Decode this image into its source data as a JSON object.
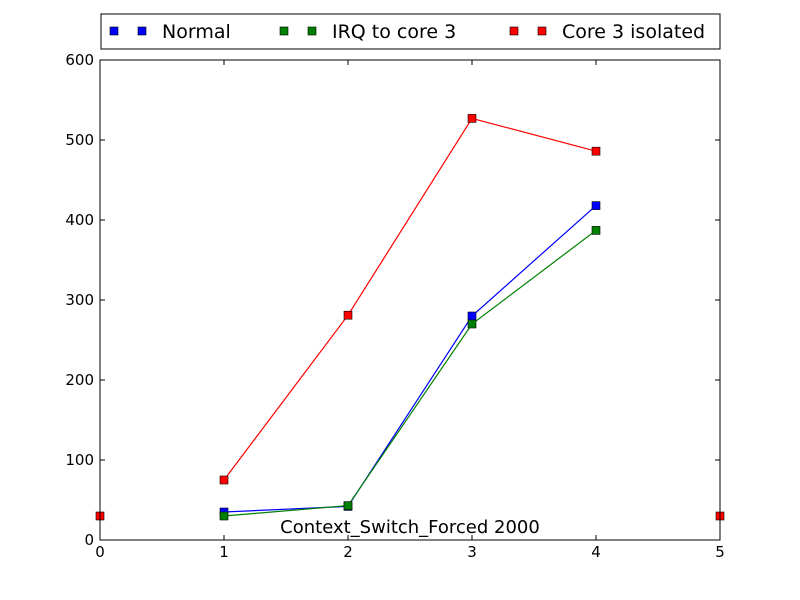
{
  "chart_data": {
    "type": "line",
    "x": [
      0,
      1,
      2,
      3,
      4,
      5
    ],
    "series": [
      {
        "name": "Normal",
        "color": "#0000ff",
        "values": [
          null,
          35,
          42,
          280,
          418,
          null
        ],
        "markers_only": []
      },
      {
        "name": "IRQ to core 3",
        "color": "#008000",
        "values": [
          null,
          30,
          43,
          270,
          387,
          null
        ],
        "markers_only": []
      },
      {
        "name": "Core 3 isolated",
        "color": "#ff0000",
        "values": [
          null,
          75,
          281,
          527,
          486,
          null
        ],
        "markers_only": [
          [
            0,
            30
          ],
          [
            5,
            30
          ]
        ]
      }
    ],
    "annotation": "Context_Switch_Forced 2000",
    "xlim": [
      0,
      5
    ],
    "ylim": [
      0,
      600
    ],
    "xticks": [
      "0",
      "1",
      "2",
      "3",
      "4",
      "5"
    ],
    "yticks": [
      "0",
      "100",
      "200",
      "300",
      "400",
      "500",
      "600"
    ],
    "grid": false,
    "legend_position": "top"
  }
}
